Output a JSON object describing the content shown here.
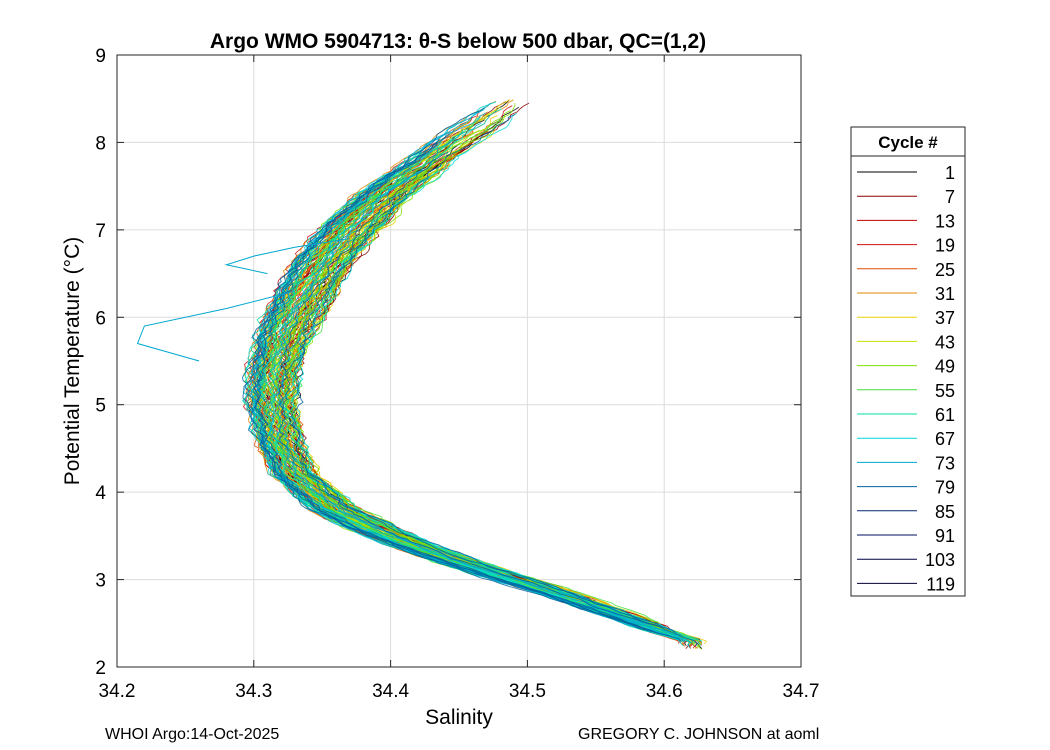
{
  "chart_data": {
    "type": "line",
    "title": "Argo WMO 5904713: θ-S below 500 dbar,  QC=(1,2)",
    "xlabel": "Salinity",
    "ylabel": "Potential Temperature (°C)",
    "xlim": [
      34.2,
      34.7
    ],
    "ylim": [
      2,
      9
    ],
    "xticks": [
      "34.2",
      "34.3",
      "34.4",
      "34.5",
      "34.6",
      "34.7"
    ],
    "yticks": [
      "2",
      "3",
      "4",
      "5",
      "6",
      "7",
      "8",
      "9"
    ],
    "grid": true,
    "legend": {
      "title": "Cycle #",
      "placement": "outside-right",
      "entries": [
        "1",
        "7",
        "13",
        "19",
        "25",
        "31",
        "37",
        "43",
        "49",
        "55",
        "61",
        "67",
        "73",
        "79",
        "85",
        "91",
        "103",
        "119"
      ],
      "colors": [
        "#000000",
        "#8b0000",
        "#c00000",
        "#d01010",
        "#e04a00",
        "#e08a00",
        "#e8d000",
        "#c8e000",
        "#80e000",
        "#40e040",
        "#00e0a0",
        "#00d8d8",
        "#00a8d0",
        "#0060a0",
        "#002870",
        "#001060",
        "#000040",
        "#000030"
      ]
    },
    "profile_envelope": {
      "theta": [
        8.6,
        8.2,
        7.8,
        7.4,
        7.0,
        6.6,
        6.2,
        5.8,
        5.4,
        5.0,
        4.6,
        4.2,
        3.8,
        3.6,
        3.4,
        3.2,
        3.0,
        2.8,
        2.6,
        2.4,
        2.3
      ],
      "salinity_center": [
        34.5,
        34.465,
        34.43,
        34.395,
        34.37,
        34.35,
        34.335,
        34.322,
        34.315,
        34.313,
        34.318,
        34.33,
        34.36,
        34.385,
        34.415,
        34.45,
        34.49,
        34.53,
        34.565,
        34.6,
        34.62
      ],
      "spread": [
        0.03,
        0.04,
        0.04,
        0.045,
        0.05,
        0.05,
        0.05,
        0.045,
        0.04,
        0.04,
        0.035,
        0.035,
        0.04,
        0.04,
        0.04,
        0.04,
        0.035,
        0.03,
        0.025,
        0.02,
        0.015
      ]
    },
    "anomaly_excursions": [
      {
        "theta": [
          6.3,
          6.1,
          5.9,
          5.7,
          5.5
        ],
        "salinity": [
          34.33,
          34.28,
          34.22,
          34.215,
          34.26
        ]
      },
      {
        "theta": [
          6.9,
          6.8,
          6.7,
          6.6,
          6.5
        ],
        "salinity": [
          34.37,
          34.33,
          34.3,
          34.28,
          34.31
        ]
      }
    ]
  },
  "footer": {
    "left": "WHOI Argo:14-Oct-2025",
    "right": "GREGORY C. JOHNSON at aoml"
  }
}
